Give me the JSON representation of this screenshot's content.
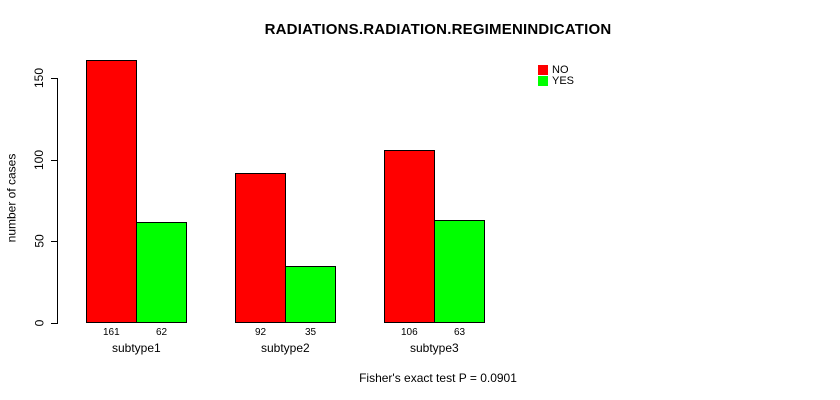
{
  "chart_data": {
    "type": "bar",
    "title": "RADIATIONS.RADIATION.REGIMENINDICATION",
    "ylabel": "number of cases",
    "xlabel": "",
    "categories": [
      "subtype1",
      "subtype2",
      "subtype3"
    ],
    "series": [
      {
        "name": "NO",
        "color": "#ff0000",
        "values": [
          161,
          92,
          106
        ]
      },
      {
        "name": "YES",
        "color": "#00ff00",
        "values": [
          62,
          35,
          63
        ]
      }
    ],
    "bar_value_labels": [
      [
        "161",
        "62"
      ],
      [
        "92",
        "35"
      ],
      [
        "106",
        "63"
      ]
    ],
    "yticks": [
      "0",
      "50",
      "100",
      "150"
    ],
    "ylim": [
      0,
      150
    ],
    "grid": false,
    "legend_position": "top-right",
    "bar_border_color": "#000000",
    "background_color": "#ffffff",
    "footnote": "Fisher's exact test P = 0.0901"
  }
}
